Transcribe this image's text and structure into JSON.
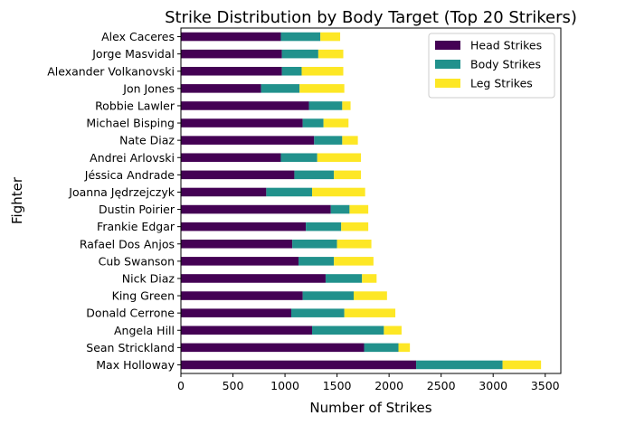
{
  "chart_data": {
    "type": "bar",
    "orientation": "horizontal",
    "stacked": true,
    "title": "Strike Distribution by Body Target (Top 20 Strikers)",
    "xlabel": "Number of Strikes",
    "ylabel": "Fighter",
    "xlim": [
      0,
      3650
    ],
    "xticks": [
      0,
      500,
      1000,
      1500,
      2000,
      2500,
      3000,
      3500
    ],
    "grid": false,
    "legend_position": "top-right",
    "categories": [
      "Max Holloway",
      "Sean Strickland",
      "Angela Hill",
      "Donald Cerrone",
      "King Green",
      "Nick Diaz",
      "Cub Swanson",
      "Rafael Dos Anjos",
      "Frankie Edgar",
      "Dustin Poirier",
      "Joanna Jędrzejczyk",
      "Jéssica Andrade",
      "Andrei Arlovski",
      "Nate Diaz",
      "Michael Bisping",
      "Robbie Lawler",
      "Jon Jones",
      "Alexander Volkanovski",
      "Jorge Masvidal",
      "Alex Caceres"
    ],
    "series": [
      {
        "name": "Head Strikes",
        "color": "#440154",
        "values": [
          2260,
          1760,
          1260,
          1060,
          1170,
          1390,
          1130,
          1070,
          1200,
          1440,
          820,
          1090,
          960,
          1280,
          1170,
          1230,
          770,
          970,
          970,
          960
        ]
      },
      {
        "name": "Body Strikes",
        "color": "#21918c",
        "values": [
          830,
          330,
          690,
          510,
          490,
          350,
          340,
          430,
          340,
          180,
          440,
          380,
          350,
          270,
          200,
          320,
          370,
          190,
          350,
          380
        ]
      },
      {
        "name": "Leg Strikes",
        "color": "#fde725",
        "values": [
          370,
          110,
          170,
          490,
          320,
          140,
          380,
          330,
          260,
          180,
          510,
          260,
          420,
          150,
          240,
          80,
          430,
          400,
          240,
          190
        ]
      }
    ]
  }
}
